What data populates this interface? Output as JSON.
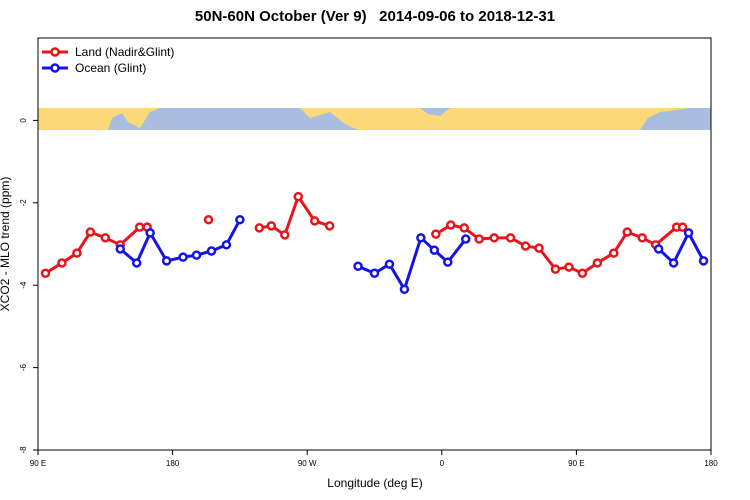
{
  "chart_data": {
    "type": "line",
    "title": "50N-60N October (Ver 9)   2014-09-06 to 2018-12-31",
    "x_label": "Longitude (deg E)",
    "y_label": "XCO2 - MLO trend (ppm)",
    "xlim": [
      90,
      540
    ],
    "xticks": [
      {
        "value": 90,
        "label": "90 E"
      },
      {
        "value": 180,
        "label": "180"
      },
      {
        "value": 270,
        "label": "90 W"
      },
      {
        "value": 360,
        "label": "0"
      },
      {
        "value": 450,
        "label": "90 E"
      },
      {
        "value": 540,
        "label": "180"
      }
    ],
    "ylim": [
      -8,
      2
    ],
    "yticks": [
      0,
      -2,
      -4,
      -6,
      -8
    ],
    "legend": "top-left",
    "series": [
      {
        "name": "Land (Nadir&Glint)",
        "color": "#e8141a",
        "x": [
          95,
          106,
          116,
          125,
          135,
          145,
          158,
          163,
          null,
          204,
          null,
          238,
          246,
          255,
          264,
          275,
          285,
          null,
          356,
          366,
          375,
          385,
          395,
          406,
          416,
          425,
          436,
          445,
          454,
          464,
          475,
          484,
          494,
          503,
          517,
          521
        ],
        "values": [
          -3.71,
          -3.46,
          -3.22,
          -2.71,
          -2.85,
          -3.02,
          -2.59,
          -2.59,
          null,
          -2.41,
          null,
          -2.61,
          -2.56,
          -2.78,
          -1.85,
          -2.44,
          -2.56,
          null,
          -2.76,
          -2.54,
          -2.61,
          -2.88,
          -2.85,
          -2.85,
          -3.05,
          -3.1,
          -3.61,
          -3.56,
          -3.71,
          -3.46,
          -3.22,
          -2.71,
          -2.85,
          -3.02,
          -2.59,
          -2.59
        ]
      },
      {
        "name": "Ocean (Glint)",
        "color": "#1414e6",
        "x": [
          145,
          156,
          165,
          176,
          187,
          196,
          206,
          216,
          225,
          null,
          304,
          315,
          325,
          335,
          346,
          355,
          364,
          376,
          null,
          505,
          515,
          525,
          535
        ],
        "values": [
          -3.12,
          -3.46,
          -2.73,
          -3.41,
          -3.32,
          -3.27,
          -3.17,
          -3.02,
          -2.41,
          null,
          -3.54,
          -3.71,
          -3.49,
          -4.1,
          -2.85,
          -3.15,
          -3.44,
          -2.88,
          null,
          -3.12,
          -3.46,
          -2.73,
          -3.41
        ]
      }
    ]
  }
}
